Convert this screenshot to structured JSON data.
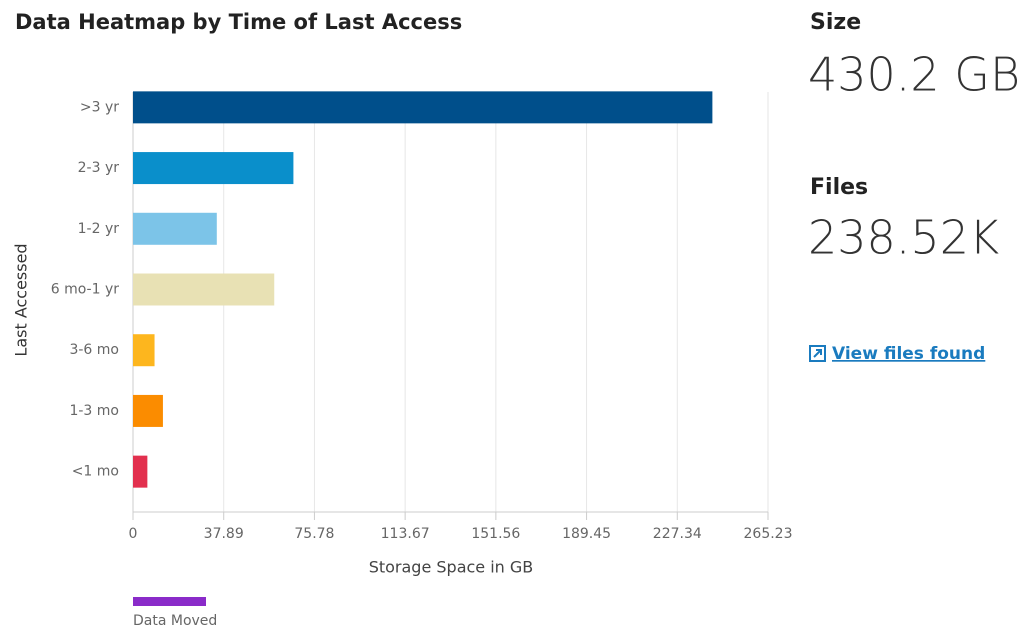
{
  "chart_data": {
    "type": "bar",
    "orientation": "horizontal",
    "title": "Data Heatmap by Time of Last Access",
    "categories": [
      ">3 yr",
      "2-3 yr",
      "1-2 yr",
      "6 mo-1 yr",
      "3-6 mo",
      "1-3 mo",
      "<1 mo"
    ],
    "values": [
      242,
      67,
      35,
      59,
      9,
      12.5,
      6
    ],
    "colors": [
      "#004f8b",
      "#0a8fcb",
      "#7cc4e8",
      "#e8e1b4",
      "#fdb61e",
      "#fb8c00",
      "#e2304e"
    ],
    "xlim": [
      0,
      265.23
    ],
    "xticks": [
      0,
      37.89,
      75.78,
      113.67,
      151.56,
      189.45,
      227.34,
      265.23
    ],
    "grid": true,
    "xlabel": "Storage Space in GB",
    "ylabel": "Last Accessed",
    "legend": {
      "name": "Data Moved",
      "color": "#8a2bc9"
    }
  },
  "stats": [
    {
      "label": "Size",
      "value": "430.2 GB"
    },
    {
      "label": "Files",
      "value": "238.52K"
    }
  ],
  "link": "View files found"
}
